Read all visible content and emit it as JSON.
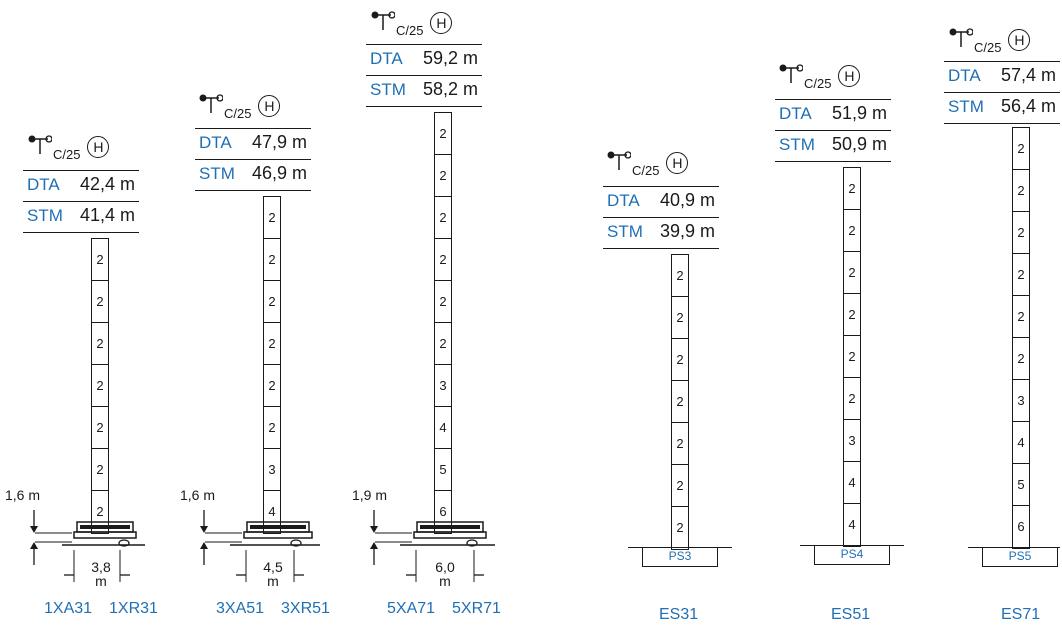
{
  "tower_symbol": {
    "sub": "C/25",
    "circle": "H",
    "icon": "tower-crane-symbol"
  },
  "towers": [
    {
      "dta_label": "DTA",
      "dta": "42,4 m",
      "stm_label": "STM",
      "stm": "41,4 m",
      "segments": [
        "2",
        "2",
        "2",
        "2",
        "2",
        "2",
        "2"
      ],
      "clearance": "1,6 m",
      "base_width": "3,8",
      "base_unit": "m",
      "models": [
        "1XA31",
        "1XR31"
      ]
    },
    {
      "dta_label": "DTA",
      "dta": "47,9 m",
      "stm_label": "STM",
      "stm": "46,9 m",
      "segments": [
        "2",
        "2",
        "2",
        "2",
        "2",
        "2",
        "3",
        "4"
      ],
      "clearance": "1,6 m",
      "base_width": "4,5",
      "base_unit": "m",
      "models": [
        "3XA51",
        "3XR51"
      ]
    },
    {
      "dta_label": "DTA",
      "dta": "59,2 m",
      "stm_label": "STM",
      "stm": "58,2 m",
      "segments": [
        "2",
        "2",
        "2",
        "2",
        "2",
        "2",
        "3",
        "4",
        "5",
        "6"
      ],
      "clearance": "1,9 m",
      "base_width": "6,0",
      "base_unit": "m",
      "models": [
        "5XA71",
        "5XR71"
      ]
    },
    {
      "dta_label": "DTA",
      "dta": "40,9 m",
      "stm_label": "STM",
      "stm": "39,9 m",
      "segments": [
        "2",
        "2",
        "2",
        "2",
        "2",
        "2",
        "2"
      ],
      "pad": "PS3",
      "models": [
        "ES31"
      ]
    },
    {
      "dta_label": "DTA",
      "dta": "51,9 m",
      "stm_label": "STM",
      "stm": "50,9 m",
      "segments": [
        "2",
        "2",
        "2",
        "2",
        "2",
        "2",
        "3",
        "4",
        "4"
      ],
      "pad": "PS4",
      "models": [
        "ES51"
      ]
    },
    {
      "dta_label": "DTA",
      "dta": "57,4 m",
      "stm_label": "STM",
      "stm": "56,4 m",
      "segments": [
        "2",
        "2",
        "2",
        "2",
        "2",
        "2",
        "3",
        "4",
        "5",
        "6"
      ],
      "pad": "PS5",
      "models": [
        "ES71"
      ]
    }
  ]
}
